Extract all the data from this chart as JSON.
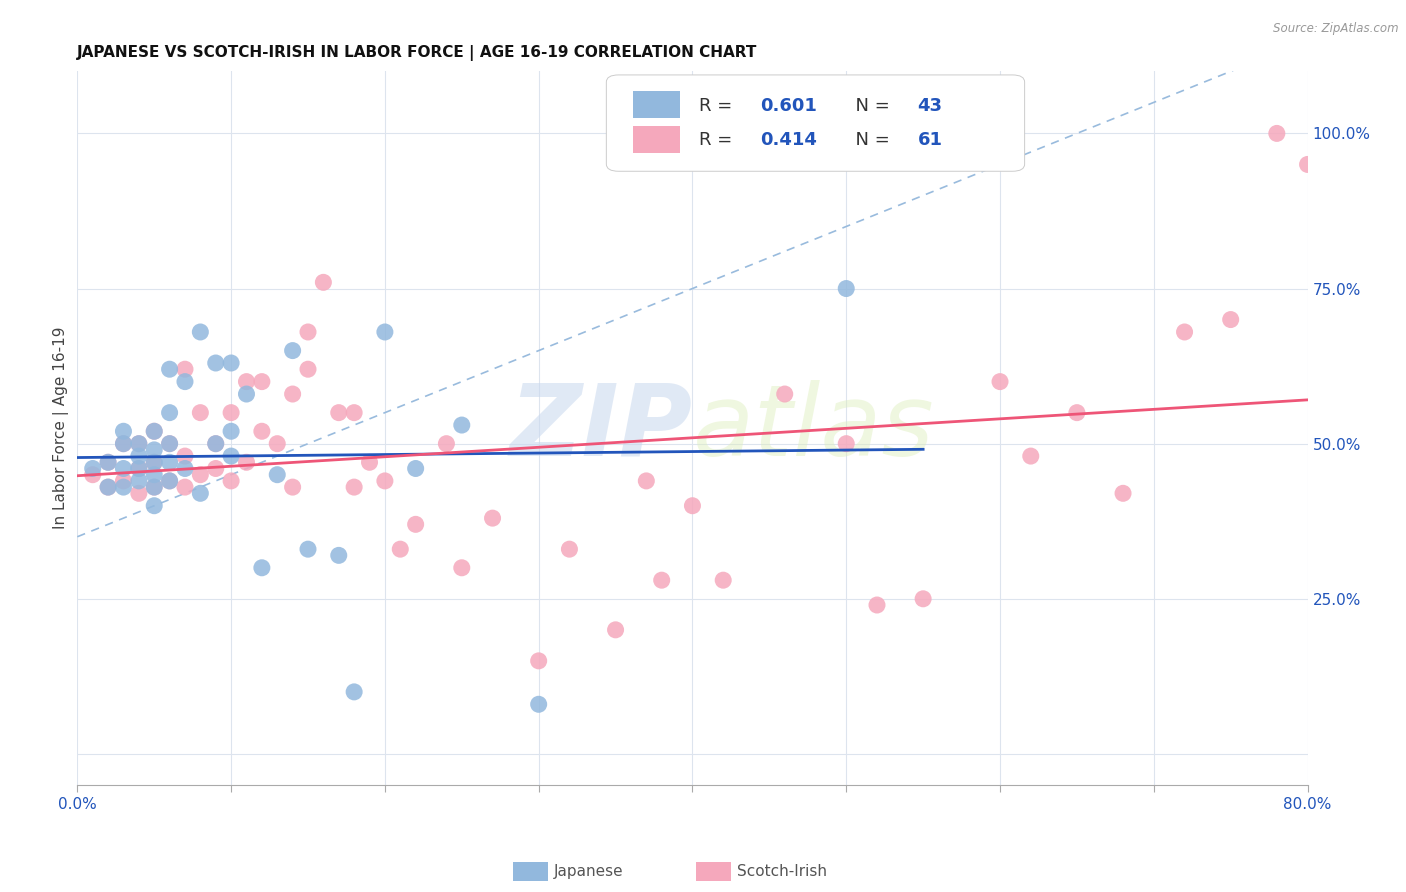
{
  "title": "JAPANESE VS SCOTCH-IRISH IN LABOR FORCE | AGE 16-19 CORRELATION CHART",
  "source": "Source: ZipAtlas.com",
  "ylabel": "In Labor Force | Age 16-19",
  "xlim": [
    0.0,
    0.8
  ],
  "ylim": [
    -0.05,
    1.1
  ],
  "y_ticks_right": [
    0.0,
    0.25,
    0.5,
    0.75,
    1.0
  ],
  "y_tick_labels_right": [
    "",
    "25.0%",
    "50.0%",
    "75.0%",
    "100.0%"
  ],
  "japanese_color": "#92b8dd",
  "scotch_irish_color": "#f5a8bc",
  "japanese_line_color": "#2255bb",
  "scotch_irish_line_color": "#ee5577",
  "dashed_line_color": "#99bbdd",
  "R_japanese": 0.601,
  "N_japanese": 43,
  "R_scotch_irish": 0.414,
  "N_scotch_irish": 61,
  "japanese_x": [
    0.01,
    0.02,
    0.02,
    0.03,
    0.03,
    0.03,
    0.03,
    0.04,
    0.04,
    0.04,
    0.04,
    0.05,
    0.05,
    0.05,
    0.05,
    0.05,
    0.05,
    0.06,
    0.06,
    0.06,
    0.06,
    0.06,
    0.07,
    0.07,
    0.08,
    0.08,
    0.09,
    0.09,
    0.1,
    0.1,
    0.1,
    0.11,
    0.12,
    0.13,
    0.14,
    0.15,
    0.17,
    0.18,
    0.2,
    0.22,
    0.25,
    0.3,
    0.5
  ],
  "japanese_y": [
    0.46,
    0.43,
    0.47,
    0.43,
    0.46,
    0.5,
    0.52,
    0.44,
    0.46,
    0.48,
    0.5,
    0.4,
    0.43,
    0.45,
    0.47,
    0.49,
    0.52,
    0.44,
    0.47,
    0.5,
    0.55,
    0.62,
    0.46,
    0.6,
    0.42,
    0.68,
    0.5,
    0.63,
    0.48,
    0.52,
    0.63,
    0.58,
    0.3,
    0.45,
    0.65,
    0.33,
    0.32,
    0.1,
    0.68,
    0.46,
    0.53,
    0.08,
    0.75
  ],
  "scotch_irish_x": [
    0.01,
    0.02,
    0.02,
    0.03,
    0.03,
    0.04,
    0.04,
    0.04,
    0.05,
    0.05,
    0.05,
    0.06,
    0.06,
    0.07,
    0.07,
    0.07,
    0.08,
    0.08,
    0.09,
    0.09,
    0.1,
    0.1,
    0.11,
    0.11,
    0.12,
    0.12,
    0.13,
    0.14,
    0.14,
    0.15,
    0.15,
    0.16,
    0.17,
    0.18,
    0.18,
    0.19,
    0.2,
    0.21,
    0.22,
    0.24,
    0.25,
    0.27,
    0.3,
    0.32,
    0.35,
    0.37,
    0.38,
    0.4,
    0.42,
    0.46,
    0.5,
    0.52,
    0.55,
    0.6,
    0.62,
    0.65,
    0.68,
    0.72,
    0.75,
    0.78,
    0.8
  ],
  "scotch_irish_y": [
    0.45,
    0.43,
    0.47,
    0.44,
    0.5,
    0.42,
    0.46,
    0.5,
    0.43,
    0.47,
    0.52,
    0.44,
    0.5,
    0.43,
    0.48,
    0.62,
    0.45,
    0.55,
    0.46,
    0.5,
    0.44,
    0.55,
    0.47,
    0.6,
    0.52,
    0.6,
    0.5,
    0.58,
    0.43,
    0.62,
    0.68,
    0.76,
    0.55,
    0.43,
    0.55,
    0.47,
    0.44,
    0.33,
    0.37,
    0.5,
    0.3,
    0.38,
    0.15,
    0.33,
    0.2,
    0.44,
    0.28,
    0.4,
    0.28,
    0.58,
    0.5,
    0.24,
    0.25,
    0.6,
    0.48,
    0.55,
    0.42,
    0.68,
    0.7,
    1.0,
    0.95
  ],
  "watermark_zip": "ZIP",
  "watermark_atlas": "atlas",
  "background_color": "#ffffff",
  "grid_color": "#dde4ee",
  "legend_text_color": "#333333",
  "legend_value_color": "#2255bb",
  "right_axis_color": "#2255bb"
}
